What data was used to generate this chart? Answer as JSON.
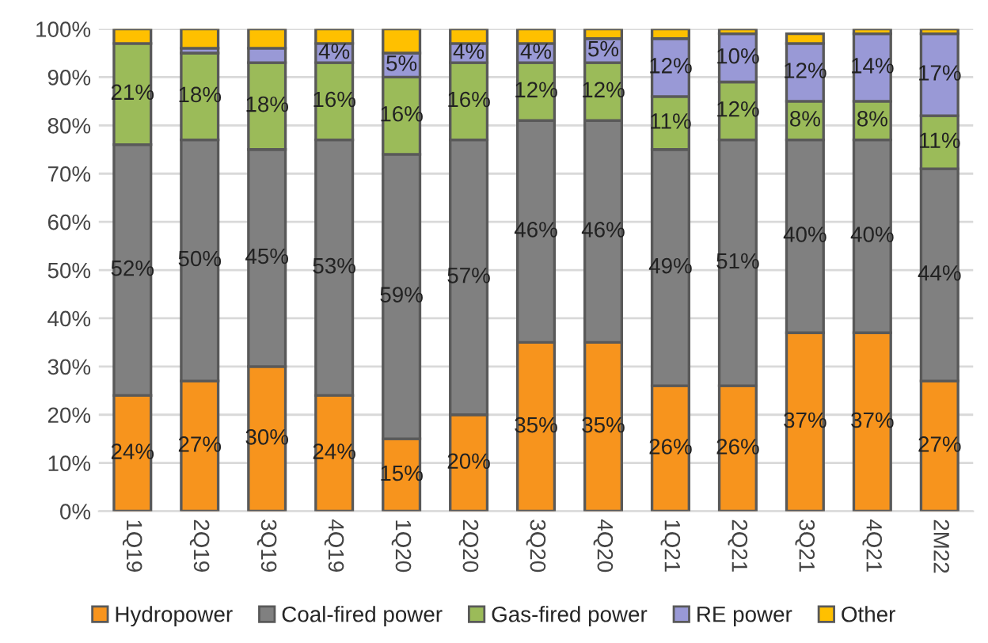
{
  "chart_data": {
    "type": "bar",
    "stacked": true,
    "categories": [
      "1Q19",
      "2Q19",
      "3Q19",
      "4Q19",
      "1Q20",
      "2Q20",
      "3Q20",
      "4Q20",
      "1Q21",
      "2Q21",
      "3Q21",
      "4Q21",
      "2M22"
    ],
    "series": [
      {
        "name": "Hydropower",
        "color": "#f7941d",
        "values": [
          24,
          27,
          30,
          24,
          15,
          20,
          35,
          35,
          26,
          26,
          37,
          37,
          27
        ],
        "value_labels": [
          "24%",
          "27%",
          "30%",
          "24%",
          "15%",
          "20%",
          "35%",
          "35%",
          "26%",
          "26%",
          "37%",
          "37%",
          "27%"
        ]
      },
      {
        "name": "Coal-fired power",
        "color": "#808080",
        "values": [
          52,
          50,
          45,
          53,
          59,
          57,
          46,
          46,
          49,
          51,
          40,
          40,
          44
        ],
        "value_labels": [
          "52%",
          "50%",
          "45%",
          "53%",
          "59%",
          "57%",
          "46%",
          "46%",
          "49%",
          "51%",
          "40%",
          "40%",
          "44%"
        ]
      },
      {
        "name": "Gas-fired power",
        "color": "#9bbb59",
        "values": [
          21,
          18,
          18,
          16,
          16,
          16,
          12,
          12,
          11,
          12,
          8,
          8,
          11
        ],
        "value_labels": [
          "21%",
          "18%",
          "18%",
          "16%",
          "16%",
          "16%",
          "12%",
          "12%",
          "11%",
          "12%",
          "8%",
          "8%",
          "11%"
        ]
      },
      {
        "name": "RE power",
        "color": "#9999d6",
        "values": [
          null,
          1,
          3,
          4,
          5,
          4,
          4,
          5,
          12,
          10,
          12,
          14,
          17
        ],
        "value_labels": [
          null,
          null,
          null,
          "4%",
          "5%",
          "4%",
          "4%",
          "5%",
          "12%",
          "10%",
          "12%",
          "14%",
          "17%"
        ]
      },
      {
        "name": "Other",
        "color": "#ffc000",
        "values": [
          3,
          4,
          4,
          3,
          5,
          3,
          3,
          2,
          2,
          1,
          2,
          1,
          1
        ],
        "value_labels": [
          null,
          null,
          null,
          null,
          null,
          null,
          null,
          null,
          null,
          null,
          null,
          null,
          null
        ]
      }
    ],
    "ylim": [
      0,
      100
    ],
    "yticks": [
      {
        "value": 0,
        "label": "0%"
      },
      {
        "value": 10,
        "label": "10%"
      },
      {
        "value": 20,
        "label": "20%"
      },
      {
        "value": 30,
        "label": "30%"
      },
      {
        "value": 40,
        "label": "40%"
      },
      {
        "value": 50,
        "label": "50%"
      },
      {
        "value": 60,
        "label": "60%"
      },
      {
        "value": 70,
        "label": "70%"
      },
      {
        "value": 80,
        "label": "80%"
      },
      {
        "value": 90,
        "label": "90%"
      },
      {
        "value": 100,
        "label": "100%"
      }
    ],
    "grid": "y",
    "legend": "bottom"
  }
}
